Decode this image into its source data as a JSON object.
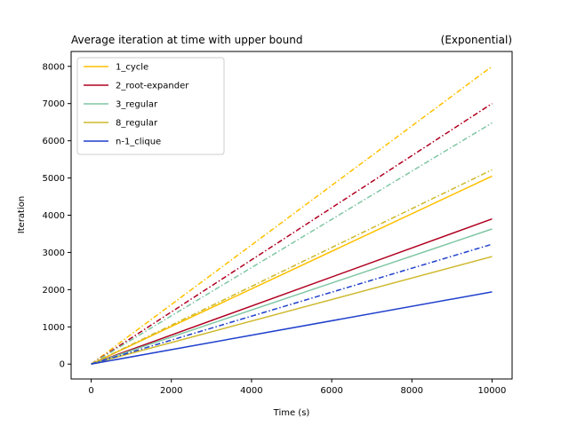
{
  "chart_data": {
    "type": "line",
    "title_left": "Average iteration at time with upper bound",
    "title_right": "(Exponential)",
    "xlabel": "Time (s)",
    "ylabel": "Iteration",
    "xlim": [
      -500,
      10500
    ],
    "ylim": [
      -400,
      8400
    ],
    "xticks": [
      0,
      2000,
      4000,
      6000,
      8000,
      10000
    ],
    "yticks": [
      0,
      1000,
      2000,
      3000,
      4000,
      5000,
      6000,
      7000,
      8000
    ],
    "legend_position": "upper-left",
    "x": [
      0,
      10000
    ],
    "series": [
      {
        "name": "1_cycle",
        "color": "#ffc000",
        "solid": [
          0,
          5050
        ],
        "upper_bound": [
          0,
          8000
        ]
      },
      {
        "name": "2_root-expander",
        "color": "#b00020",
        "solid": [
          0,
          3900
        ],
        "upper_bound": [
          0,
          7000
        ]
      },
      {
        "name": "3_regular",
        "color": "#7fc6a4",
        "solid": [
          0,
          3630
        ],
        "upper_bound": [
          0,
          6480
        ]
      },
      {
        "name": "8_regular",
        "color": "#cdb82a",
        "solid": [
          0,
          2890
        ],
        "upper_bound": [
          0,
          5220
        ]
      },
      {
        "name": "n-1_clique",
        "color": "#1f3fcc",
        "solid": [
          0,
          1940
        ],
        "upper_bound": [
          0,
          3220
        ]
      }
    ]
  }
}
